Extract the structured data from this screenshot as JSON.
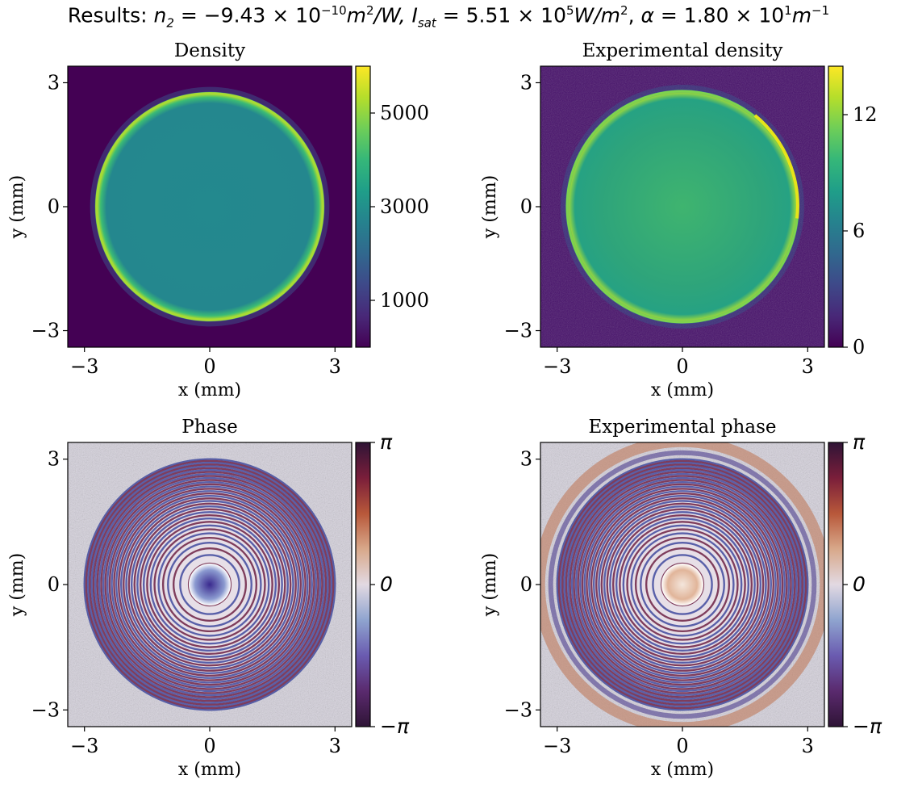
{
  "figure": {
    "suptitle": {
      "prefix": "Results: ",
      "n2_sym": "n",
      "n2_sub": "2",
      "n2_eq": " = −9.43 × 10",
      "n2_exp": "−10",
      "n2_unit": "m",
      "n2_unit_exp": "2",
      "n2_unit_tail": "/W, ",
      "isat_sym": "I",
      "isat_sub": "sat",
      "isat_eq": " = 5.51 × 10",
      "isat_exp": "5",
      "isat_unit": "W/m",
      "isat_unit_exp": "2",
      "alpha_sep": ", ",
      "alpha_sym": "α",
      "alpha_eq": " = 1.80 × 10",
      "alpha_exp": "1",
      "alpha_unit": "m",
      "alpha_unit_exp": "−1"
    }
  },
  "colors": {
    "viridis_low": "#440154",
    "viridis_mid": "#21918c",
    "viridis_high": "#fde725",
    "twilight_low": "#2f1436",
    "twilight_mid": "#e2d9e2",
    "twilight_high": "#2f1436"
  },
  "chart_data": [
    {
      "type": "heatmap",
      "title": "Density",
      "xlabel": "x (mm)",
      "ylabel": "y (mm)",
      "xlim": [
        -3.4,
        3.4
      ],
      "ylim": [
        -3.4,
        3.4
      ],
      "xticks": [
        -3,
        0,
        3
      ],
      "yticks": [
        -3,
        0,
        3
      ],
      "colormap": "viridis",
      "colorbar": {
        "range": [
          0,
          6000
        ],
        "ticks": [
          1000,
          3000,
          5000
        ]
      },
      "content": {
        "shape": "disk",
        "radius_mm": 2.75,
        "center": [
          0,
          0
        ],
        "interior_value": 2800,
        "edge_value": 5200,
        "background_value": 150
      }
    },
    {
      "type": "heatmap",
      "title": "Experimental density",
      "xlabel": "x (mm)",
      "ylabel": "y (mm)",
      "xlim": [
        -3.4,
        3.4
      ],
      "ylim": [
        -3.4,
        3.4
      ],
      "xticks": [
        -3,
        0,
        3
      ],
      "yticks": [
        -3,
        0,
        3
      ],
      "colormap": "viridis",
      "colorbar": {
        "range": [
          0,
          14.5
        ],
        "ticks": [
          0,
          6,
          12
        ]
      },
      "content": {
        "shape": "disk",
        "radius_mm": 2.8,
        "center": [
          0,
          0
        ],
        "interior_value": 8.5,
        "edge_value": 12.5,
        "background_value": 1.5
      }
    },
    {
      "type": "heatmap",
      "title": "Phase",
      "xlabel": "x (mm)",
      "ylabel": "y (mm)",
      "xlim": [
        -3.4,
        3.4
      ],
      "ylim": [
        -3.4,
        3.4
      ],
      "xticks": [
        -3,
        0,
        3
      ],
      "yticks": [
        -3,
        0,
        3
      ],
      "colormap": "twilight_shifted",
      "colorbar": {
        "range": [
          "−π",
          "π"
        ],
        "ticks": [
          "−π",
          "0",
          "π"
        ]
      },
      "content": {
        "shape": "concentric-fringes",
        "radius_mm": 3.0,
        "center": [
          0,
          0
        ],
        "center_value": "−π"
      }
    },
    {
      "type": "heatmap",
      "title": "Experimental phase",
      "xlabel": "x (mm)",
      "ylabel": "y (mm)",
      "xlim": [
        -3.4,
        3.4
      ],
      "ylim": [
        -3.4,
        3.4
      ],
      "xticks": [
        -3,
        0,
        3
      ],
      "yticks": [
        -3,
        0,
        3
      ],
      "colormap": "twilight_shifted",
      "colorbar": {
        "range": [
          "−π",
          "π"
        ],
        "ticks": [
          "−π",
          "0",
          "π"
        ]
      },
      "content": {
        "shape": "concentric-fringes",
        "radius_mm": 3.0,
        "center": [
          0,
          0
        ],
        "center_value": "0"
      }
    }
  ]
}
